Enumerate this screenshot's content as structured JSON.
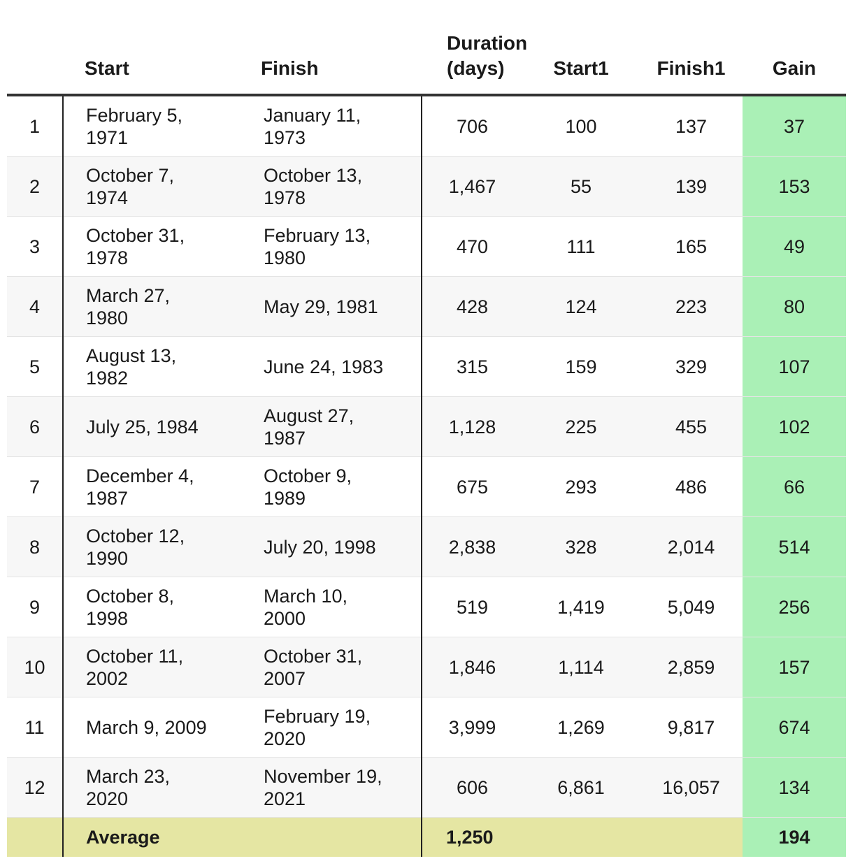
{
  "table": {
    "headers": {
      "index": "",
      "start": "Start",
      "finish": "Finish",
      "duration": "Duration (days)",
      "start1": "Start1",
      "finish1": "Finish1",
      "gain": "Gain"
    },
    "rows": [
      {
        "index": "1",
        "start": "February 5, 1971",
        "finish": "January 11, 1973",
        "duration": "706",
        "start1": "100",
        "finish1": "137",
        "gain": "37"
      },
      {
        "index": "2",
        "start": "October 7, 1974",
        "finish": "October 13, 1978",
        "duration": "1,467",
        "start1": "55",
        "finish1": "139",
        "gain": "153"
      },
      {
        "index": "3",
        "start": "October 31, 1978",
        "finish": "February 13, 1980",
        "duration": "470",
        "start1": "111",
        "finish1": "165",
        "gain": "49"
      },
      {
        "index": "4",
        "start": "March 27, 1980",
        "finish": "May 29, 1981",
        "duration": "428",
        "start1": "124",
        "finish1": "223",
        "gain": "80"
      },
      {
        "index": "5",
        "start": "August 13, 1982",
        "finish": "June 24, 1983",
        "duration": "315",
        "start1": "159",
        "finish1": "329",
        "gain": "107"
      },
      {
        "index": "6",
        "start": "July 25, 1984",
        "finish": "August 27, 1987",
        "duration": "1,128",
        "start1": "225",
        "finish1": "455",
        "gain": "102"
      },
      {
        "index": "7",
        "start": "December 4, 1987",
        "finish": "October 9, 1989",
        "duration": "675",
        "start1": "293",
        "finish1": "486",
        "gain": "66"
      },
      {
        "index": "8",
        "start": "October 12, 1990",
        "finish": "July 20, 1998",
        "duration": "2,838",
        "start1": "328",
        "finish1": "2,014",
        "gain": "514"
      },
      {
        "index": "9",
        "start": "October 8, 1998",
        "finish": "March 10, 2000",
        "duration": "519",
        "start1": "1,419",
        "finish1": "5,049",
        "gain": "256"
      },
      {
        "index": "10",
        "start": "October 11, 2002",
        "finish": "October 31, 2007",
        "duration": "1,846",
        "start1": "1,114",
        "finish1": "2,859",
        "gain": "157"
      },
      {
        "index": "11",
        "start": "March 9, 2009",
        "finish": "February 19, 2020",
        "duration": "3,999",
        "start1": "1,269",
        "finish1": "9,817",
        "gain": "674"
      },
      {
        "index": "12",
        "start": "March 23, 2020",
        "finish": "November 19, 2021",
        "duration": "606",
        "start1": "6,861",
        "finish1": "16,057",
        "gain": "134"
      }
    ],
    "footer": {
      "label": "Average",
      "duration": "1,250",
      "gain": "194"
    }
  },
  "colors": {
    "gain_column": "#aaf0b6",
    "average_row": "#e5e6a3",
    "zebra_row": "#f7f7f7"
  }
}
